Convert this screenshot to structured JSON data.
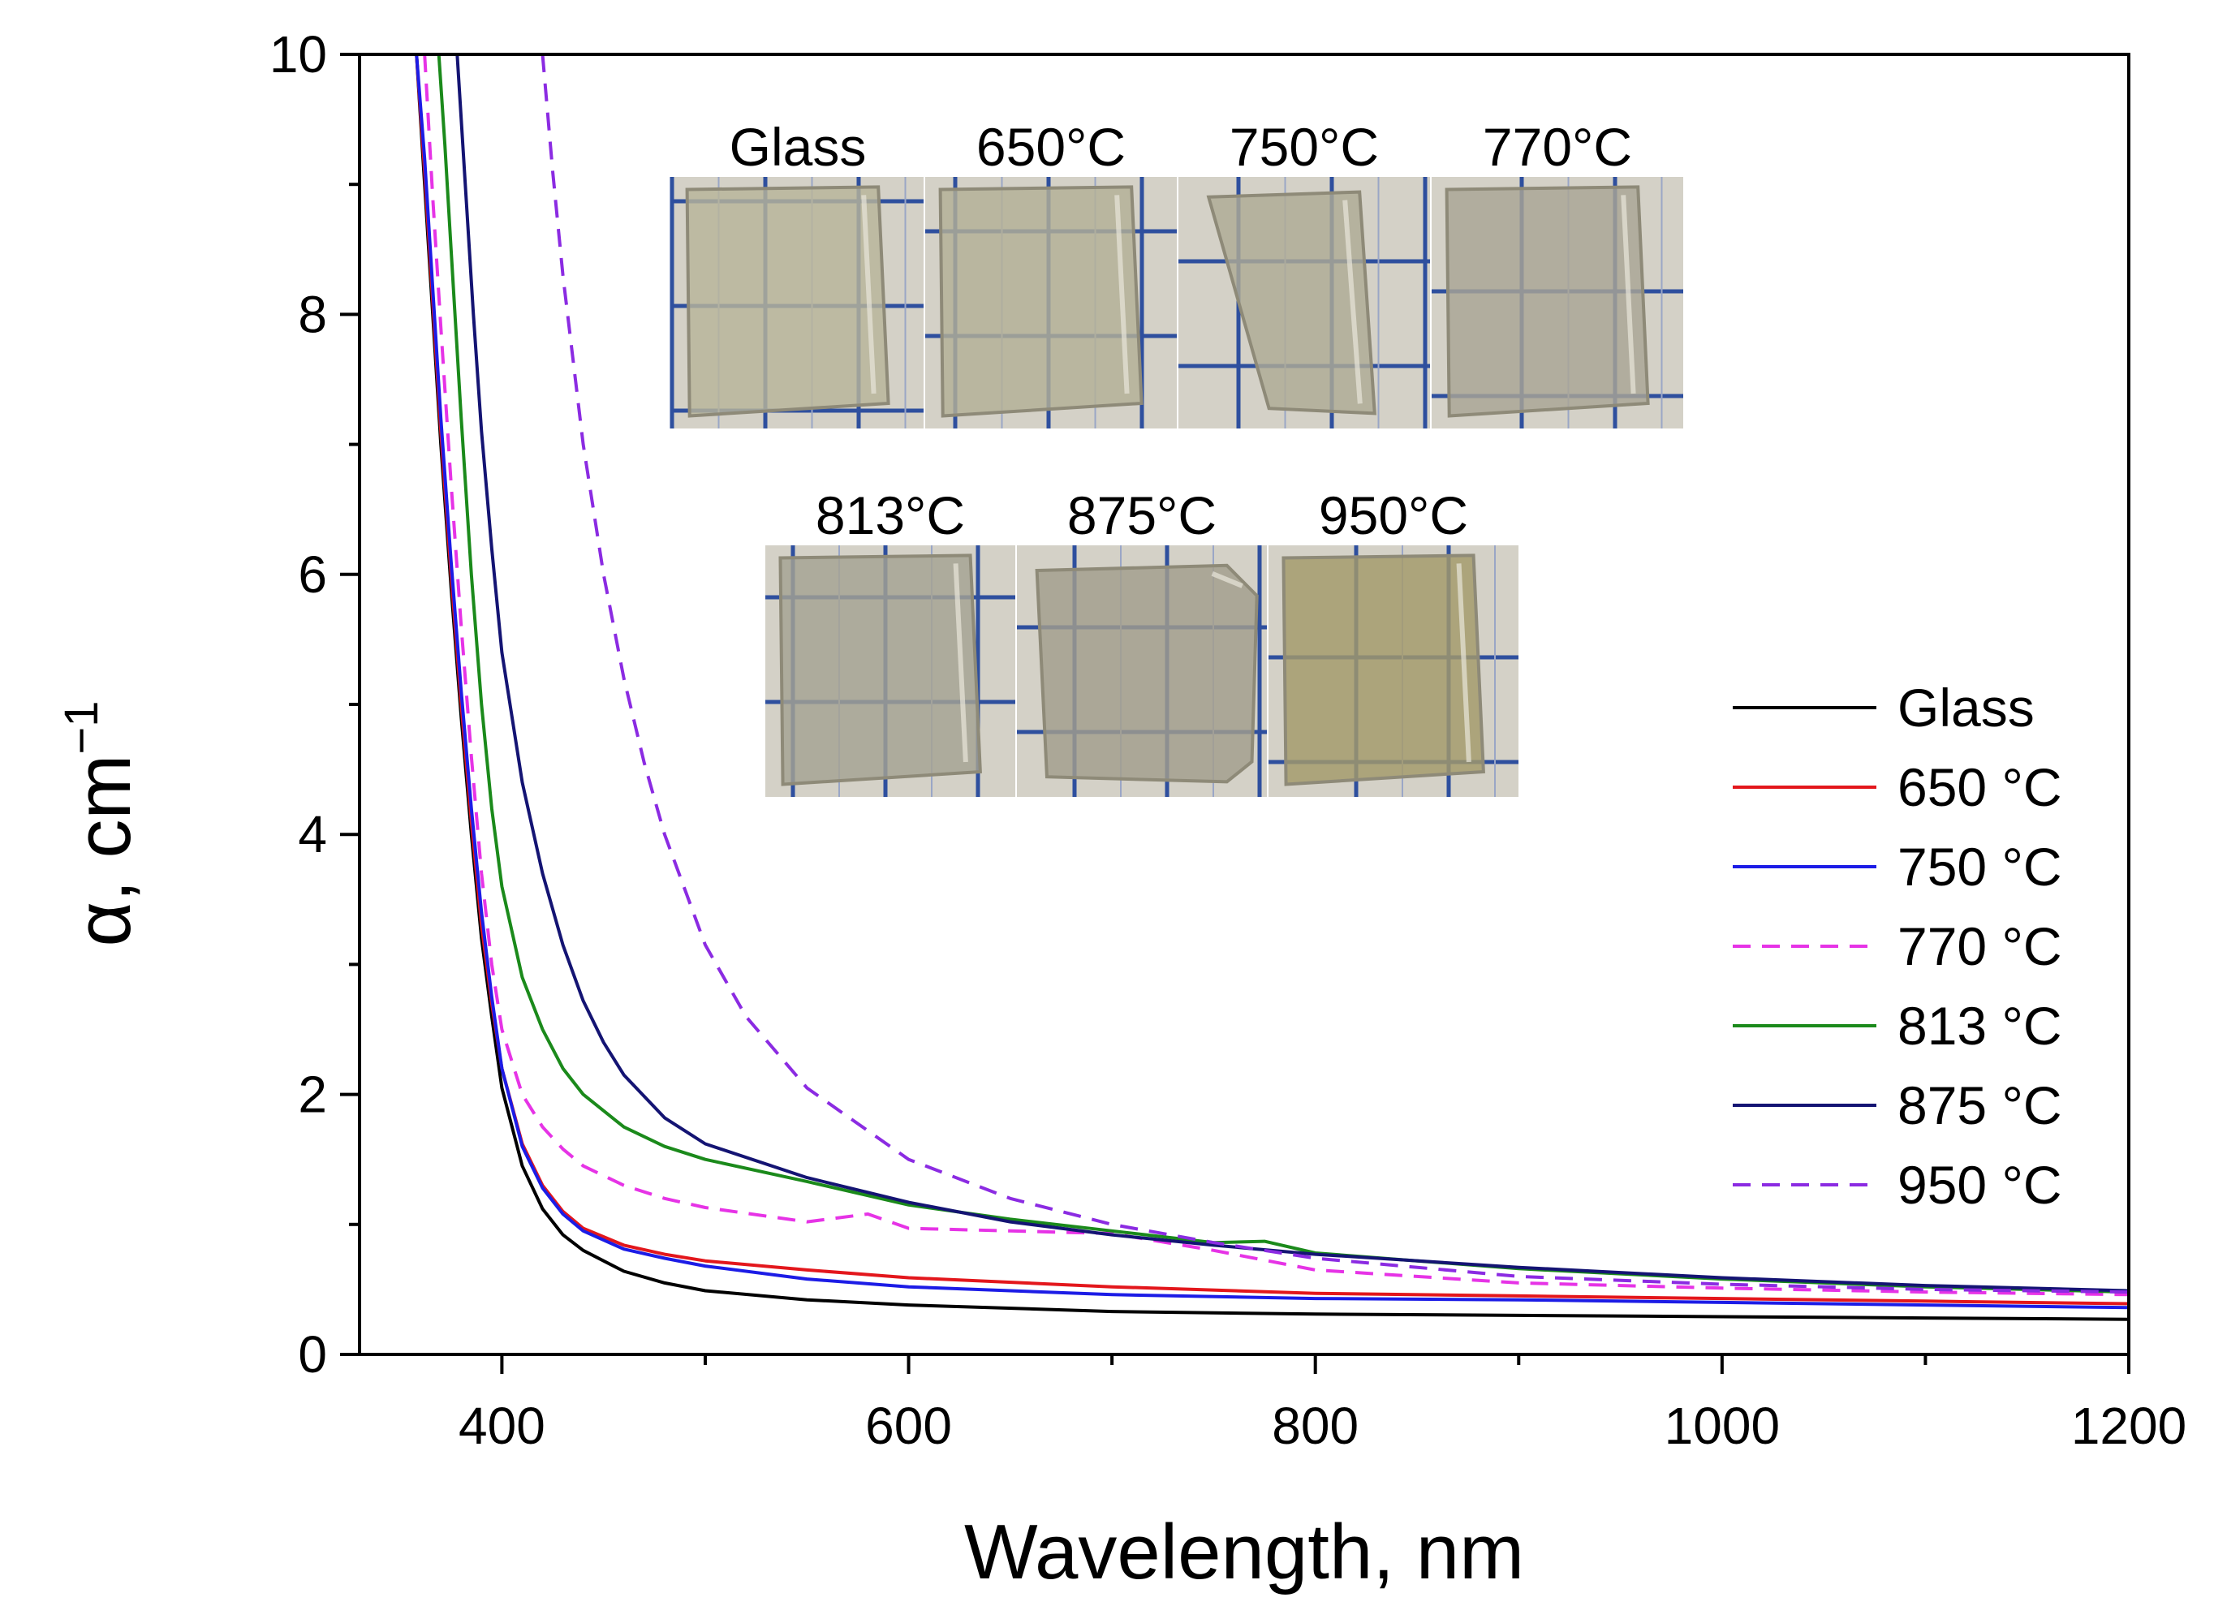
{
  "chart_data": {
    "type": "line",
    "title": "",
    "xlabel": "Wavelength, nm",
    "ylabel_symbol": "α, cm",
    "ylabel_exponent": "−1",
    "xlim": [
      330,
      1200
    ],
    "ylim": [
      0,
      10
    ],
    "xticks_major": [
      400,
      600,
      800,
      1000,
      1200
    ],
    "xticks_minor": [
      500,
      700,
      900,
      1100
    ],
    "yticks_major": [
      0,
      2,
      4,
      6,
      8,
      10
    ],
    "yticks_minor": [
      1,
      3,
      5,
      7,
      9
    ],
    "xtick_labels": [
      "400",
      "600",
      "800",
      "1000",
      "1200"
    ],
    "ytick_labels": [
      "0",
      "2",
      "4",
      "6",
      "8",
      "10"
    ],
    "grid": false,
    "legend_position": "middle-right",
    "series": [
      {
        "name": "Glass",
        "color": "#000000",
        "dash": "solid",
        "x": [
          358,
          362,
          366,
          370,
          375,
          380,
          385,
          390,
          395,
          400,
          410,
          420,
          430,
          440,
          460,
          480,
          500,
          550,
          600,
          700,
          800,
          900,
          1000,
          1100,
          1200
        ],
        "y": [
          10,
          9.0,
          8.0,
          7.0,
          5.9,
          4.9,
          4.0,
          3.2,
          2.6,
          2.05,
          1.45,
          1.12,
          0.92,
          0.8,
          0.64,
          0.55,
          0.49,
          0.42,
          0.38,
          0.33,
          0.31,
          0.3,
          0.29,
          0.28,
          0.27
        ]
      },
      {
        "name": "650 °C",
        "color": "#e3171c",
        "dash": "solid",
        "x": [
          358,
          362,
          366,
          370,
          375,
          380,
          385,
          390,
          395,
          400,
          410,
          420,
          430,
          440,
          460,
          480,
          500,
          550,
          600,
          700,
          800,
          900,
          1000,
          1100,
          1200
        ],
        "y": [
          10,
          9.1,
          8.1,
          7.1,
          6.0,
          5.0,
          4.1,
          3.3,
          2.7,
          2.2,
          1.62,
          1.3,
          1.1,
          0.97,
          0.84,
          0.77,
          0.72,
          0.65,
          0.59,
          0.52,
          0.47,
          0.45,
          0.43,
          0.41,
          0.39
        ]
      },
      {
        "name": "750 °C",
        "color": "#1c1ce6",
        "dash": "solid",
        "x": [
          358,
          362,
          366,
          370,
          375,
          380,
          385,
          390,
          395,
          400,
          410,
          420,
          430,
          440,
          460,
          480,
          500,
          550,
          600,
          700,
          800,
          900,
          1000,
          1100,
          1200
        ],
        "y": [
          10,
          9.2,
          8.2,
          7.2,
          6.1,
          5.1,
          4.2,
          3.4,
          2.75,
          2.2,
          1.6,
          1.28,
          1.08,
          0.95,
          0.81,
          0.74,
          0.68,
          0.58,
          0.52,
          0.46,
          0.43,
          0.42,
          0.4,
          0.38,
          0.36
        ]
      },
      {
        "name": "770 °C",
        "color": "#e633e6",
        "dash": "dashed",
        "x": [
          362,
          366,
          370,
          375,
          380,
          385,
          390,
          395,
          400,
          410,
          420,
          430,
          440,
          460,
          480,
          500,
          550,
          580,
          600,
          650,
          700,
          750,
          800,
          900,
          1000,
          1100,
          1200
        ],
        "y": [
          10,
          8.9,
          7.9,
          6.7,
          5.6,
          4.6,
          3.7,
          3.0,
          2.5,
          2.0,
          1.75,
          1.58,
          1.45,
          1.3,
          1.2,
          1.13,
          1.02,
          1.08,
          0.97,
          0.95,
          0.93,
          0.8,
          0.65,
          0.55,
          0.51,
          0.48,
          0.46
        ]
      },
      {
        "name": "813 °C",
        "color": "#1b8a1b",
        "dash": "solid",
        "x": [
          369,
          372,
          375,
          380,
          385,
          390,
          395,
          400,
          410,
          420,
          430,
          440,
          460,
          480,
          500,
          550,
          600,
          650,
          700,
          750,
          775,
          800,
          850,
          900,
          1000,
          1100,
          1200
        ],
        "y": [
          10,
          9.3,
          8.5,
          7.2,
          6.0,
          5.0,
          4.2,
          3.6,
          2.9,
          2.5,
          2.2,
          2.0,
          1.75,
          1.6,
          1.5,
          1.33,
          1.15,
          1.04,
          0.95,
          0.86,
          0.87,
          0.78,
          0.72,
          0.66,
          0.58,
          0.52,
          0.48
        ]
      },
      {
        "name": "875 °C",
        "color": "#141473",
        "dash": "solid",
        "x": [
          378,
          382,
          386,
          390,
          395,
          400,
          410,
          420,
          430,
          440,
          450,
          460,
          480,
          500,
          550,
          600,
          650,
          700,
          750,
          800,
          900,
          1000,
          1100,
          1200
        ],
        "y": [
          10,
          9.0,
          8.0,
          7.1,
          6.2,
          5.4,
          4.4,
          3.7,
          3.15,
          2.72,
          2.4,
          2.15,
          1.82,
          1.62,
          1.36,
          1.17,
          1.02,
          0.92,
          0.84,
          0.77,
          0.67,
          0.59,
          0.53,
          0.49
        ]
      },
      {
        "name": "950 °C",
        "color": "#8b2be2",
        "dash": "dashed",
        "x": [
          420,
          425,
          430,
          440,
          450,
          460,
          470,
          480,
          500,
          520,
          550,
          600,
          650,
          700,
          750,
          800,
          900,
          1000,
          1100,
          1200
        ],
        "y": [
          10,
          9.1,
          8.3,
          7.0,
          6.0,
          5.2,
          4.55,
          4.0,
          3.15,
          2.6,
          2.05,
          1.5,
          1.2,
          1.0,
          0.86,
          0.74,
          0.6,
          0.54,
          0.5,
          0.48
        ]
      }
    ]
  },
  "inset": {
    "row1": [
      "Glass",
      "650°C",
      "750°C",
      "770°C"
    ],
    "row2": [
      "813°C",
      "875°C",
      "950°C"
    ],
    "sample_colors": {
      "Glass": "#b8b59a",
      "650°C": "#b3b096",
      "750°C": "#aeab95",
      "770°C": "#a9a595",
      "813°C": "#a5a292",
      "875°C": "#a29e8c",
      "950°C": "#a49a6a"
    },
    "paper_color": "#d4d1c7",
    "grid_color": "#2e4f9e"
  }
}
